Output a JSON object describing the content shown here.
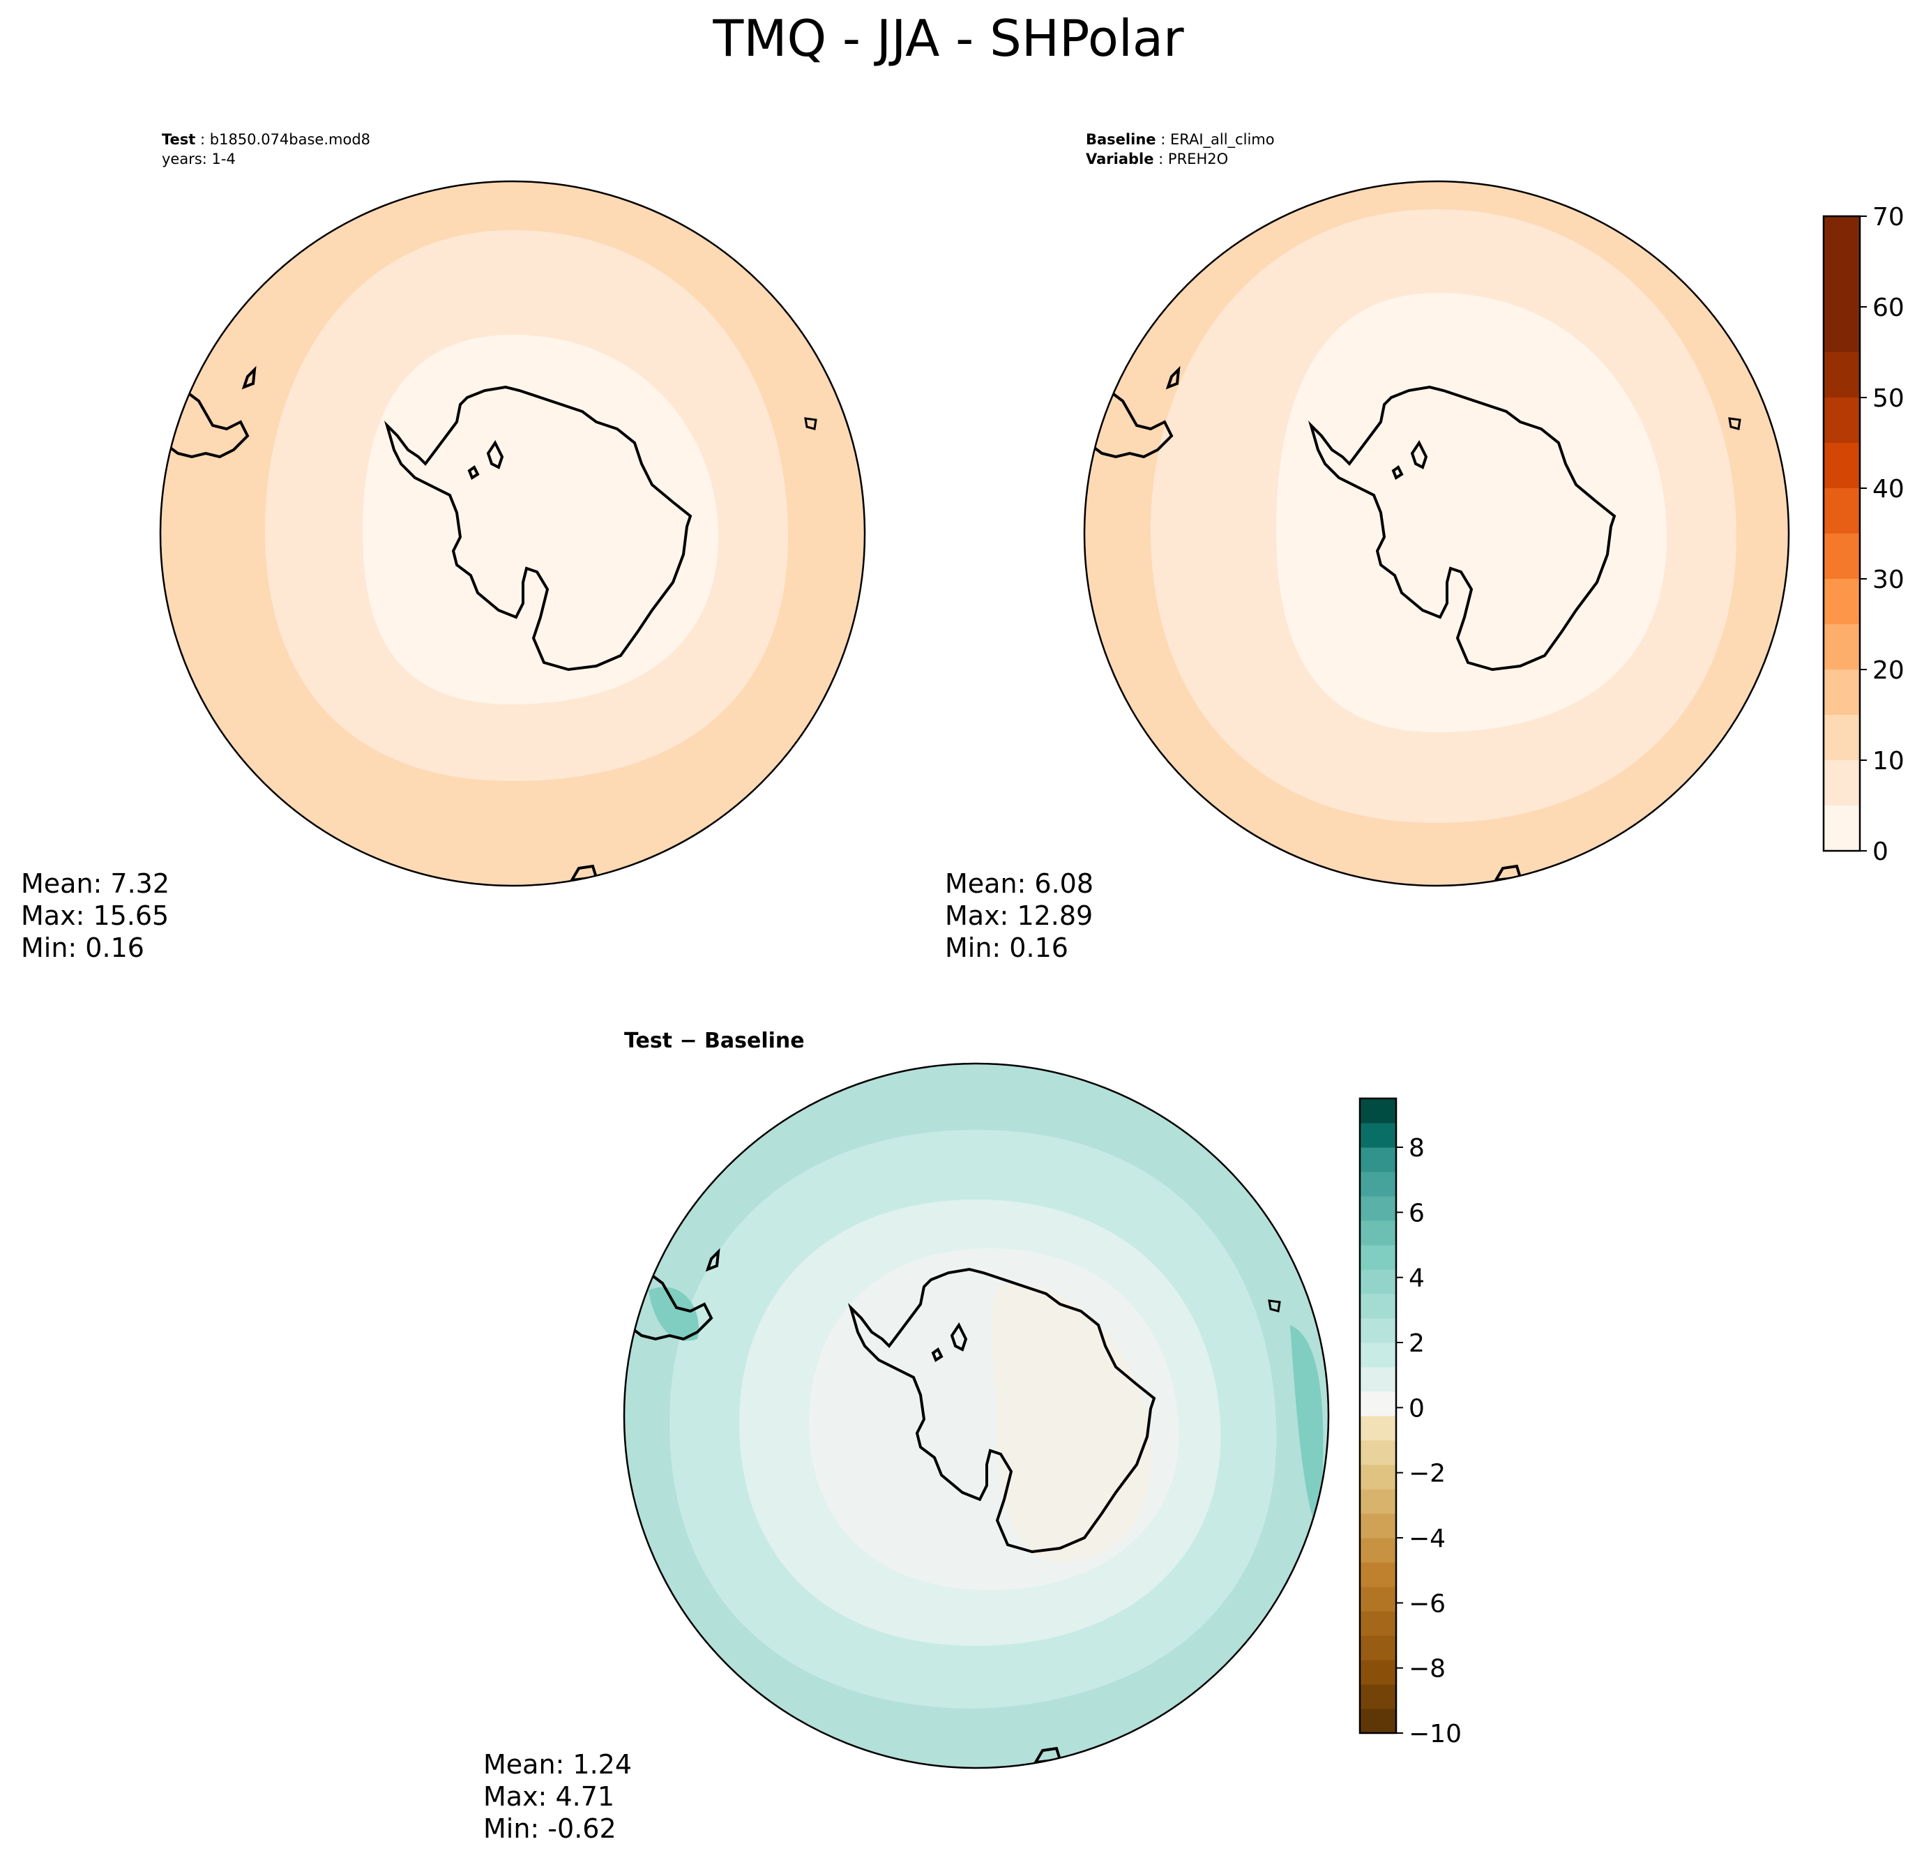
{
  "chart_data": [
    {
      "type": "heatmap",
      "title": "TMQ - JJA - SHPolar",
      "panels": [
        {
          "id": "test",
          "header": [
            {
              "key": "Test",
              "value": "b1850.074base.mod8"
            },
            {
              "key": "",
              "value": "years: 1-4"
            }
          ],
          "stats": {
            "mean": "Mean:  7.32",
            "max": "Max: 15.65",
            "min": "Min:  0.16"
          },
          "projection": "South polar stereographic",
          "colormap": "Oranges"
        },
        {
          "id": "baseline",
          "header": [
            {
              "key": "Baseline",
              "value": "ERAI_all_climo"
            },
            {
              "key": "Variable",
              "value": "PREH2O"
            }
          ],
          "stats": {
            "mean": "Mean:  6.08",
            "max": "Max: 12.89",
            "min": "Min:  0.16"
          },
          "projection": "South polar stereographic",
          "colormap": "Oranges"
        },
        {
          "id": "diff",
          "subtitle": "Test − Baseline",
          "stats": {
            "mean": "Mean:  1.24",
            "max": "Max:  4.71",
            "min": "Min: -0.62"
          },
          "projection": "South polar stereographic",
          "colormap": "BrBG"
        }
      ],
      "colorbars": [
        {
          "for": "test-and-baseline",
          "ticks": [
            "0",
            "10",
            "20",
            "30",
            "40",
            "50",
            "60",
            "70"
          ],
          "range": [
            0,
            70
          ],
          "levels": 14,
          "colors": [
            "#fff5eb",
            "#fee8d3",
            "#fdd9b4",
            "#fdc692",
            "#fdae6b",
            "#fd9649",
            "#f4792b",
            "#e75e15",
            "#d34603",
            "#b53a03",
            "#963002",
            "#7f2704",
            "#7f2704",
            "#7f2704"
          ]
        },
        {
          "for": "difference",
          "ticks": [
            "8",
            "6",
            "4",
            "2",
            "0",
            "−2",
            "−4",
            "−6",
            "−8",
            "−10"
          ],
          "range": [
            -10,
            9.5
          ],
          "levels": 26
        }
      ]
    }
  ]
}
